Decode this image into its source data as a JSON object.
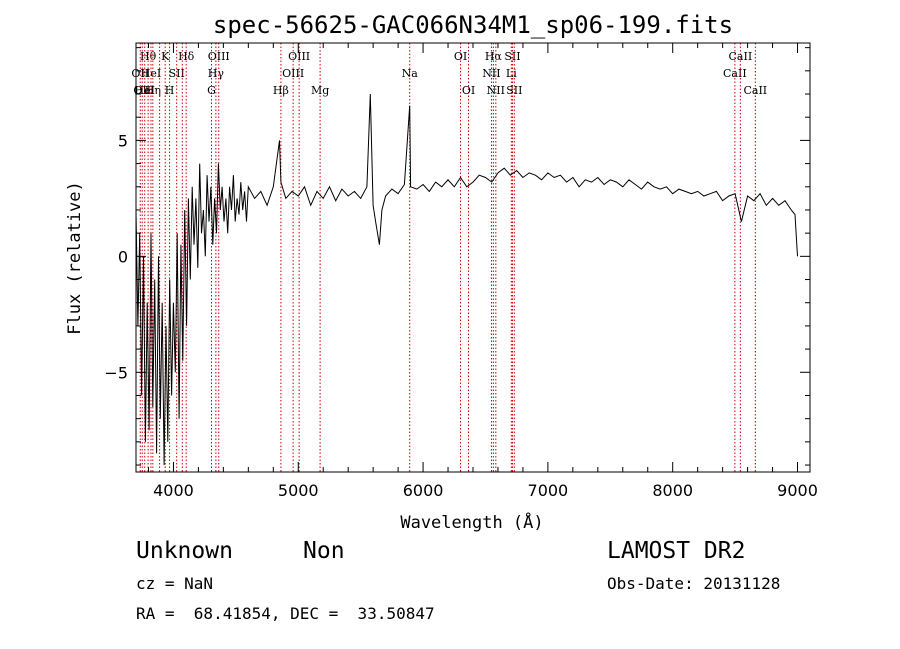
{
  "chart_data": {
    "type": "line",
    "title": "spec-56625-GAC066N34M1_sp06-199.fits",
    "xlabel": "Wavelength (Å)",
    "ylabel": "Flux (relative)",
    "xlim": [
      3700,
      9100
    ],
    "ylim": [
      -9.3,
      9.2
    ],
    "xticks": [
      4000,
      5000,
      6000,
      7000,
      8000,
      9000
    ],
    "yticks": [
      -5,
      0,
      5
    ],
    "series": [
      {
        "x": [
          3700,
          3715,
          3730,
          3745,
          3760,
          3775,
          3790,
          3805,
          3820,
          3835,
          3850,
          3865,
          3880,
          3895,
          3910,
          3925,
          3940,
          3955,
          3970,
          3985,
          4000,
          4015,
          4030,
          4045,
          4060,
          4075,
          4090,
          4105,
          4120,
          4135,
          4150,
          4165,
          4180,
          4195,
          4210,
          4225,
          4240,
          4255,
          4270,
          4285,
          4300,
          4315,
          4330,
          4345,
          4360,
          4375,
          4390,
          4405,
          4420,
          4435,
          4450,
          4465,
          4480,
          4495,
          4510,
          4525,
          4540,
          4555,
          4570,
          4585,
          4600,
          4650,
          4700,
          4750,
          4800,
          4850,
          4861,
          4900,
          4950,
          5000,
          5050,
          5100,
          5150,
          5200,
          5250,
          5300,
          5350,
          5400,
          5450,
          5500,
          5550,
          5577,
          5600,
          5620,
          5650,
          5670,
          5700,
          5750,
          5800,
          5850,
          5893,
          5900,
          5950,
          6000,
          6050,
          6100,
          6150,
          6200,
          6250,
          6300,
          6350,
          6400,
          6450,
          6500,
          6550,
          6600,
          6650,
          6700,
          6750,
          6800,
          6850,
          6900,
          6950,
          7000,
          7050,
          7100,
          7150,
          7200,
          7250,
          7300,
          7350,
          7400,
          7450,
          7500,
          7550,
          7600,
          7650,
          7700,
          7750,
          7800,
          7850,
          7900,
          7950,
          8000,
          8050,
          8100,
          8150,
          8200,
          8250,
          8300,
          8350,
          8400,
          8450,
          8500,
          8550,
          8600,
          8650,
          8700,
          8750,
          8800,
          8850,
          8900,
          8950,
          8980,
          9000
        ],
        "y": [
          2.0,
          -3.0,
          1.0,
          -6.0,
          0.0,
          -8.0,
          -2.0,
          -7.5,
          1.0,
          -6.5,
          -1.0,
          -8.5,
          0.0,
          -7.0,
          -2.0,
          -9.0,
          -3.0,
          -8.0,
          -1.0,
          -6.0,
          -2.0,
          -5.0,
          1.0,
          -7.0,
          0.5,
          -4.5,
          2.0,
          -3.0,
          2.5,
          -1.0,
          3.0,
          0.5,
          2.5,
          -0.5,
          4.0,
          1.0,
          2.0,
          0.0,
          3.5,
          1.5,
          3.0,
          0.5,
          2.5,
          1.0,
          4.0,
          2.0,
          3.0,
          1.5,
          2.5,
          1.0,
          3.0,
          2.0,
          3.5,
          1.5,
          2.5,
          1.8,
          3.2,
          2.0,
          2.8,
          1.5,
          3.0,
          2.5,
          2.8,
          2.2,
          3.0,
          5.0,
          3.2,
          2.5,
          2.8,
          2.6,
          3.0,
          2.2,
          2.8,
          2.5,
          3.0,
          2.4,
          2.9,
          2.6,
          2.8,
          2.5,
          3.0,
          7.0,
          2.2,
          1.5,
          0.5,
          2.0,
          2.6,
          2.9,
          2.7,
          3.1,
          6.5,
          3.0,
          2.9,
          3.1,
          2.8,
          3.2,
          3.0,
          3.3,
          3.0,
          3.4,
          3.0,
          3.2,
          3.5,
          3.4,
          3.2,
          3.6,
          3.8,
          3.5,
          3.7,
          3.4,
          3.6,
          3.5,
          3.3,
          3.6,
          3.4,
          3.5,
          3.2,
          3.4,
          3.0,
          3.3,
          3.2,
          3.4,
          3.1,
          3.3,
          3.2,
          3.0,
          3.3,
          3.1,
          2.9,
          3.2,
          3.0,
          2.9,
          3.0,
          2.7,
          2.9,
          2.8,
          2.7,
          2.8,
          2.6,
          2.7,
          2.8,
          2.4,
          2.6,
          2.7,
          1.5,
          2.6,
          2.4,
          2.7,
          2.2,
          2.5,
          2.2,
          2.4,
          2.0,
          1.8,
          0.0
        ]
      }
    ],
    "lines": [
      {
        "x": 3734,
        "labels": [
          "OII"
        ],
        "rows": [
          1
        ]
      },
      {
        "x": 3750,
        "labels": [
          "OII"
        ],
        "rows": [
          2
        ]
      },
      {
        "x": 3770,
        "labels": [
          "HeI"
        ],
        "rows": [
          2
        ]
      },
      {
        "x": 3797,
        "labels": [
          "Hθ"
        ],
        "rows": [
          0
        ]
      },
      {
        "x": 3820,
        "labels": [
          "HeI"
        ],
        "rows": [
          1
        ]
      },
      {
        "x": 3835,
        "labels": [
          "Hη"
        ],
        "rows": [
          2
        ]
      },
      {
        "x": 3889,
        "labels": [],
        "rows": []
      },
      {
        "x": 3934,
        "labels": [
          "K"
        ],
        "rows": [
          0
        ]
      },
      {
        "x": 3969,
        "labels": [
          "H"
        ],
        "rows": [
          2
        ]
      },
      {
        "x": 4026,
        "labels": [
          "SII"
        ],
        "rows": [
          1
        ]
      },
      {
        "x": 4071,
        "labels": [],
        "rows": []
      },
      {
        "x": 4102,
        "labels": [
          "Hδ"
        ],
        "rows": [
          0
        ]
      },
      {
        "x": 4305,
        "labels": [
          "G"
        ],
        "rows": [
          2
        ]
      },
      {
        "x": 4340,
        "labels": [
          "Hγ"
        ],
        "rows": [
          1
        ]
      },
      {
        "x": 4363,
        "labels": [
          "OIII"
        ],
        "rows": [
          0
        ]
      },
      {
        "x": 4861,
        "labels": [
          "Hβ"
        ],
        "rows": [
          2
        ]
      },
      {
        "x": 4959,
        "labels": [
          "OIII"
        ],
        "rows": [
          1
        ]
      },
      {
        "x": 5007,
        "labels": [
          "OIII"
        ],
        "rows": [
          0
        ]
      },
      {
        "x": 5175,
        "labels": [
          "Mg"
        ],
        "rows": [
          2
        ]
      },
      {
        "x": 5893,
        "labels": [
          "Na"
        ],
        "rows": [
          1
        ]
      },
      {
        "x": 6300,
        "labels": [
          "OI"
        ],
        "rows": [
          0
        ]
      },
      {
        "x": 6364,
        "labels": [
          "OI"
        ],
        "rows": [
          2
        ]
      },
      {
        "x": 6548,
        "labels": [
          "NII"
        ],
        "rows": [
          1
        ]
      },
      {
        "x": 6563,
        "labels": [
          "Hα"
        ],
        "rows": [
          0
        ]
      },
      {
        "x": 6583,
        "labels": [
          "NII"
        ],
        "rows": [
          2
        ]
      },
      {
        "x": 6707,
        "labels": [
          "Li"
        ],
        "rows": [
          1
        ]
      },
      {
        "x": 6716,
        "labels": [
          "SII"
        ],
        "rows": [
          0
        ]
      },
      {
        "x": 6731,
        "labels": [
          "SII"
        ],
        "rows": [
          2
        ]
      },
      {
        "x": 8498,
        "labels": [
          "CaII"
        ],
        "rows": [
          1
        ]
      },
      {
        "x": 8542,
        "labels": [
          "CaII"
        ],
        "rows": [
          0
        ]
      },
      {
        "x": 8662,
        "labels": [
          "CaII"
        ],
        "rows": [
          2
        ]
      }
    ],
    "line_color": "#cc0000",
    "grid": false,
    "legend": "none"
  },
  "info": {
    "class_label": "Unknown",
    "subclass_label": "Non",
    "cz": "cz = NaN",
    "coords": "RA =  68.41854, DEC =  33.50847",
    "survey": "LAMOST DR2",
    "obs_date": "Obs-Date: 20131128"
  }
}
